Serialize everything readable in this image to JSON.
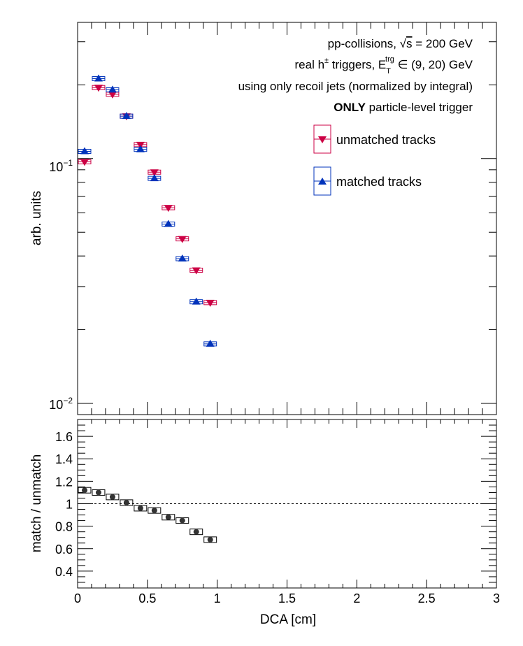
{
  "chart_data": [
    {
      "type": "scatter",
      "panel": "top",
      "ylabel": "arb. units",
      "yscale": "log",
      "ylim": [
        0.009,
        0.36
      ],
      "xlim": [
        0,
        3
      ],
      "ytick_labels": [
        {
          "base": "10",
          "exp": "−1",
          "value": 0.1
        },
        {
          "base": "10",
          "exp": "−2",
          "value": 0.01
        }
      ],
      "annotations": {
        "line1": "pp-collisions, ",
        "line1_sqrt": "s",
        "line1_rest": " = 200 GeV",
        "line2_a": "real h",
        "line2_sup": "±",
        "line2_b": " triggers, E",
        "line2_sub": "T",
        "line2_sup2": "trg",
        "line2_c": " ∈ (9, 20) GeV",
        "line3": "using only recoil jets (normalized by integral)",
        "line4_bold": "ONLY",
        "line4_rest": " particle-level trigger"
      },
      "legend_position": "top-right",
      "series": [
        {
          "name": "unmatched tracks",
          "marker": "triangle-down",
          "color": "#cc0044",
          "x": [
            0.05,
            0.15,
            0.25,
            0.35,
            0.45,
            0.55,
            0.65,
            0.75,
            0.85,
            0.95
          ],
          "y": [
            0.097,
            0.195,
            0.183,
            0.149,
            0.114,
            0.088,
            0.063,
            0.047,
            0.035,
            0.0258
          ]
        },
        {
          "name": "matched tracks",
          "marker": "triangle-up",
          "color": "#0033bb",
          "x": [
            0.05,
            0.15,
            0.25,
            0.35,
            0.45,
            0.55,
            0.65,
            0.75,
            0.85,
            0.95
          ],
          "y": [
            0.107,
            0.212,
            0.191,
            0.149,
            0.109,
            0.083,
            0.054,
            0.039,
            0.026,
            0.0175
          ]
        }
      ]
    },
    {
      "type": "scatter",
      "panel": "bottom",
      "xlabel": "DCA [cm]",
      "ylabel": "match / unmatch",
      "xlim": [
        0,
        3
      ],
      "ylim": [
        0.25,
        1.75
      ],
      "xticks": [
        0,
        0.5,
        1,
        1.5,
        2,
        2.5,
        3
      ],
      "xtick_labels": [
        "0",
        "0.5",
        "1",
        "1.5",
        "2",
        "2.5",
        "3"
      ],
      "yticks": [
        0.4,
        0.6,
        0.8,
        1,
        1.2,
        1.4,
        1.6
      ],
      "ytick_labels": [
        "0.4",
        "0.6",
        "0.8",
        "1",
        "1.2",
        "1.4",
        "1.6"
      ],
      "reference_line": 1,
      "series": [
        {
          "marker": "circle",
          "color": "#333333",
          "x": [
            0.05,
            0.15,
            0.25,
            0.35,
            0.45,
            0.55,
            0.65,
            0.75,
            0.85,
            0.95
          ],
          "y": [
            1.12,
            1.1,
            1.06,
            1.01,
            0.96,
            0.94,
            0.88,
            0.85,
            0.75,
            0.68
          ]
        }
      ]
    }
  ]
}
